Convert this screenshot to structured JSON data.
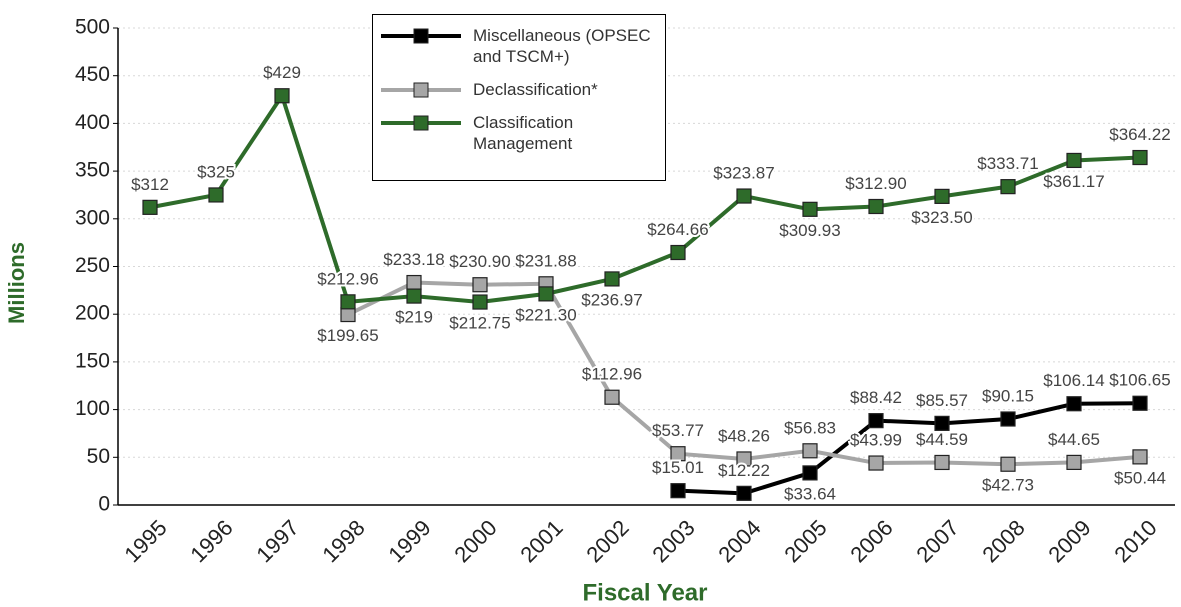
{
  "chart_data": {
    "type": "line",
    "xlabel": "Fiscal Year",
    "ylabel": "Millions",
    "categories": [
      "1995",
      "1996",
      "1997",
      "1998",
      "1999",
      "2000",
      "2001",
      "2002",
      "2003",
      "2004",
      "2005",
      "2006",
      "2007",
      "2008",
      "2009",
      "2010"
    ],
    "series": [
      {
        "name": "Miscellaneous (OPSEC and TSCM+)",
        "color": "#000000",
        "marker_fill": "#000000",
        "values": [
          null,
          null,
          null,
          null,
          null,
          null,
          null,
          null,
          15.01,
          12.22,
          33.64,
          88.42,
          85.57,
          90.15,
          106.14,
          106.65
        ],
        "value_labels": [
          null,
          null,
          null,
          null,
          null,
          null,
          null,
          null,
          "$15.01",
          "$12.22",
          "$33.64",
          "$88.42",
          "$85.57",
          "$90.15",
          "$106.14",
          "$106.65"
        ]
      },
      {
        "name": "Declassification*",
        "color": "#a6a6a6",
        "marker_fill": "#a6a6a6",
        "values": [
          null,
          null,
          null,
          199.65,
          233.18,
          230.9,
          231.88,
          112.96,
          53.77,
          48.26,
          56.83,
          43.99,
          44.59,
          42.73,
          44.65,
          50.44
        ],
        "value_labels": [
          null,
          null,
          null,
          "$199.65",
          "$233.18",
          "$230.90",
          "$231.88",
          "$112.96",
          "$53.77",
          "$48.26",
          "$56.83",
          "$43.99",
          "$44.59",
          "$42.73",
          "$44.65",
          "$50.44"
        ]
      },
      {
        "name": "Classification Management",
        "color": "#2e6b2a",
        "marker_fill": "#2e6b2a",
        "values": [
          312,
          325,
          429,
          212.96,
          219,
          212.75,
          221.3,
          236.97,
          264.66,
          323.87,
          309.93,
          312.9,
          323.5,
          333.71,
          361.17,
          364.22
        ],
        "value_labels": [
          "$312",
          "$325",
          "$429",
          "$212.96",
          "$219",
          "$212.75",
          "$221.30",
          "$236.97",
          "$264.66",
          "$323.87",
          "$309.93",
          "$312.90",
          "$323.50",
          "$333.71",
          "$361.17",
          "$364.22"
        ]
      }
    ],
    "ylim": [
      0,
      500
    ],
    "yticks": [
      0,
      50,
      100,
      150,
      200,
      250,
      300,
      350,
      400,
      450,
      500
    ],
    "grid": true,
    "legend": "top"
  }
}
